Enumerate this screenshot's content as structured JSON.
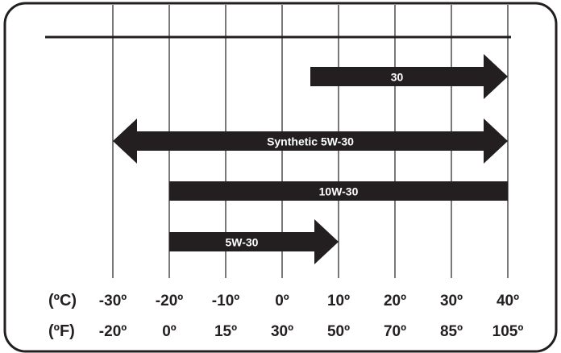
{
  "chart_data": {
    "type": "range-bar",
    "title": "",
    "xlabel": "",
    "ylabel": "",
    "x_unit_primary_label": "(ºC)",
    "x_unit_secondary_label": "(ºF)",
    "x_ticks_c": [
      "-30º",
      "-20º",
      "-10º",
      "0º",
      "10º",
      "20º",
      "30º",
      "40º"
    ],
    "x_ticks_f": [
      "-20º",
      "0º",
      "15º",
      "30º",
      "50º",
      "70º",
      "85º",
      "105º"
    ],
    "x_values_c": [
      -30,
      -20,
      -10,
      0,
      10,
      20,
      30,
      40
    ],
    "xlim_c": [
      -30,
      40
    ],
    "grid": "vertical",
    "bars": [
      {
        "label": "30",
        "start_c": 5,
        "end_c": 40,
        "left_arrow": false,
        "right_arrow": true
      },
      {
        "label": "Synthetic 5W-30",
        "start_c": -30,
        "end_c": 40,
        "left_arrow": true,
        "right_arrow": true
      },
      {
        "label": "10W-30",
        "start_c": -20,
        "end_c": 40,
        "left_arrow": false,
        "right_arrow": false
      },
      {
        "label": "5W-30",
        "start_c": -20,
        "end_c": 10,
        "left_arrow": false,
        "right_arrow": true
      }
    ],
    "colors": {
      "bar": "#231f20",
      "bar_text": "#ffffff",
      "grid": "#231f20",
      "frame": "#231f20",
      "text": "#231f20"
    }
  }
}
